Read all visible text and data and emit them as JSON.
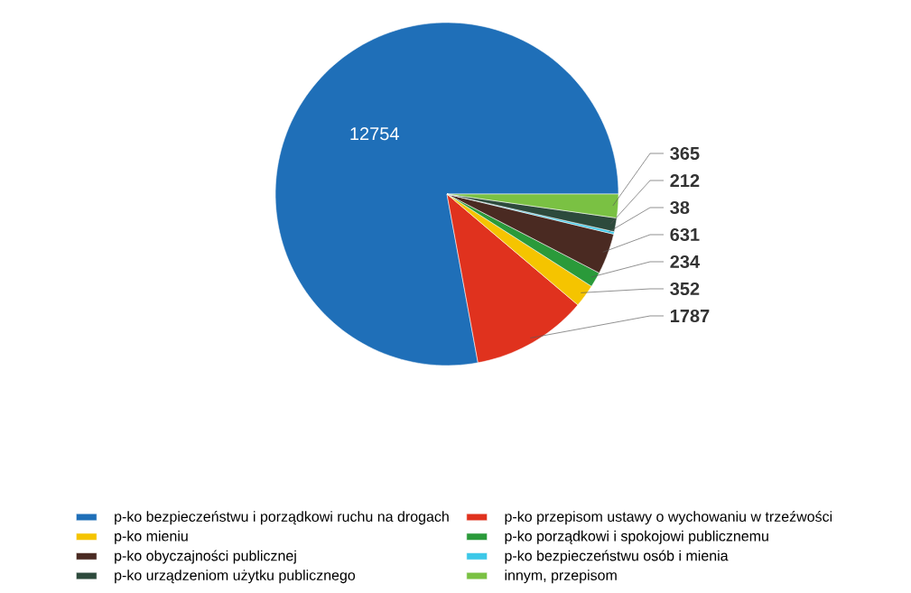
{
  "chart_data": {
    "type": "pie",
    "categories": [
      "p-ko bezpieczeństwu i porządkowi ruchu na drogach",
      "p-ko przepisom ustawy o wychowaniu w trzeźwości",
      "p-ko mieniu",
      "p-ko porządkowi i spokojowi publicznemu",
      "p-ko obyczajności publicznej",
      "p-ko bezpieczeństwu osób i mienia",
      "p-ko urządzeniom użytku publicznego",
      "innym, przepisom"
    ],
    "values": [
      12754,
      1787,
      352,
      234,
      631,
      38,
      212,
      365
    ],
    "colors": [
      "#1f6fb8",
      "#e0321e",
      "#f5c400",
      "#2a9a3a",
      "#4a2a22",
      "#3cc8e8",
      "#2d4a3c",
      "#7ac143"
    ],
    "data_labels": true,
    "legend": "bottom"
  }
}
